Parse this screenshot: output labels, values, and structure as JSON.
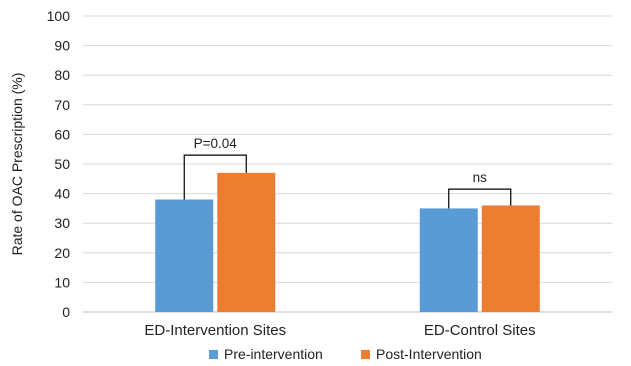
{
  "chart_data": {
    "type": "bar",
    "ylabel": "Rate of OAC Prescription (%)",
    "ylim": [
      0,
      100
    ],
    "yticks": [
      0,
      10,
      20,
      30,
      40,
      50,
      60,
      70,
      80,
      90,
      100
    ],
    "grid": true,
    "legend_position": "bottom",
    "categories": [
      "ED-Intervention Sites",
      "ED-Control Sites"
    ],
    "series": [
      {
        "name": "Pre-intervention",
        "color": "#5B9BD5",
        "values": [
          38,
          35
        ]
      },
      {
        "name": "Post-Intervention",
        "color": "#ED7D31",
        "values": [
          47,
          36
        ]
      }
    ],
    "annotations": [
      {
        "category_index": 0,
        "text": "P=0.04",
        "bracket_y": 53
      },
      {
        "category_index": 1,
        "text": "ns",
        "bracket_y": 41.5
      }
    ]
  }
}
